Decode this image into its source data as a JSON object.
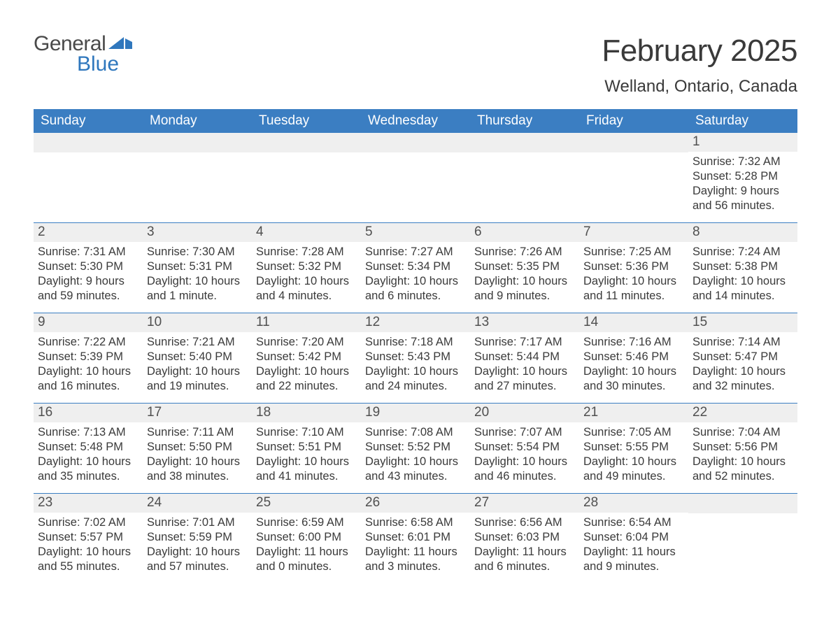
{
  "brand": {
    "word1": "General",
    "word2": "Blue",
    "accent_color": "#2f77bd"
  },
  "header": {
    "title": "February 2025",
    "location": "Welland, Ontario, Canada"
  },
  "colors": {
    "header_bg": "#3b7ec2",
    "header_text": "#ffffff",
    "daynum_bg": "#efefef",
    "week_border": "#3b7ec2",
    "body_text": "#3a3a3a"
  },
  "typography": {
    "title_fontsize": 44,
    "location_fontsize": 24,
    "dayhead_fontsize": 19,
    "daynum_fontsize": 19,
    "body_fontsize": 16.5
  },
  "day_headers": [
    "Sunday",
    "Monday",
    "Tuesday",
    "Wednesday",
    "Thursday",
    "Friday",
    "Saturday"
  ],
  "labels": {
    "sunrise": "Sunrise:",
    "sunset": "Sunset:",
    "daylight": "Daylight:"
  },
  "weeks": [
    [
      {
        "empty": true
      },
      {
        "empty": true
      },
      {
        "empty": true
      },
      {
        "empty": true
      },
      {
        "empty": true
      },
      {
        "empty": true
      },
      {
        "num": "1",
        "sunrise": "7:32 AM",
        "sunset": "5:28 PM",
        "daylight": "9 hours and 56 minutes."
      }
    ],
    [
      {
        "num": "2",
        "sunrise": "7:31 AM",
        "sunset": "5:30 PM",
        "daylight": "9 hours and 59 minutes."
      },
      {
        "num": "3",
        "sunrise": "7:30 AM",
        "sunset": "5:31 PM",
        "daylight": "10 hours and 1 minute."
      },
      {
        "num": "4",
        "sunrise": "7:28 AM",
        "sunset": "5:32 PM",
        "daylight": "10 hours and 4 minutes."
      },
      {
        "num": "5",
        "sunrise": "7:27 AM",
        "sunset": "5:34 PM",
        "daylight": "10 hours and 6 minutes."
      },
      {
        "num": "6",
        "sunrise": "7:26 AM",
        "sunset": "5:35 PM",
        "daylight": "10 hours and 9 minutes."
      },
      {
        "num": "7",
        "sunrise": "7:25 AM",
        "sunset": "5:36 PM",
        "daylight": "10 hours and 11 minutes."
      },
      {
        "num": "8",
        "sunrise": "7:24 AM",
        "sunset": "5:38 PM",
        "daylight": "10 hours and 14 minutes."
      }
    ],
    [
      {
        "num": "9",
        "sunrise": "7:22 AM",
        "sunset": "5:39 PM",
        "daylight": "10 hours and 16 minutes."
      },
      {
        "num": "10",
        "sunrise": "7:21 AM",
        "sunset": "5:40 PM",
        "daylight": "10 hours and 19 minutes."
      },
      {
        "num": "11",
        "sunrise": "7:20 AM",
        "sunset": "5:42 PM",
        "daylight": "10 hours and 22 minutes."
      },
      {
        "num": "12",
        "sunrise": "7:18 AM",
        "sunset": "5:43 PM",
        "daylight": "10 hours and 24 minutes."
      },
      {
        "num": "13",
        "sunrise": "7:17 AM",
        "sunset": "5:44 PM",
        "daylight": "10 hours and 27 minutes."
      },
      {
        "num": "14",
        "sunrise": "7:16 AM",
        "sunset": "5:46 PM",
        "daylight": "10 hours and 30 minutes."
      },
      {
        "num": "15",
        "sunrise": "7:14 AM",
        "sunset": "5:47 PM",
        "daylight": "10 hours and 32 minutes."
      }
    ],
    [
      {
        "num": "16",
        "sunrise": "7:13 AM",
        "sunset": "5:48 PM",
        "daylight": "10 hours and 35 minutes."
      },
      {
        "num": "17",
        "sunrise": "7:11 AM",
        "sunset": "5:50 PM",
        "daylight": "10 hours and 38 minutes."
      },
      {
        "num": "18",
        "sunrise": "7:10 AM",
        "sunset": "5:51 PM",
        "daylight": "10 hours and 41 minutes."
      },
      {
        "num": "19",
        "sunrise": "7:08 AM",
        "sunset": "5:52 PM",
        "daylight": "10 hours and 43 minutes."
      },
      {
        "num": "20",
        "sunrise": "7:07 AM",
        "sunset": "5:54 PM",
        "daylight": "10 hours and 46 minutes."
      },
      {
        "num": "21",
        "sunrise": "7:05 AM",
        "sunset": "5:55 PM",
        "daylight": "10 hours and 49 minutes."
      },
      {
        "num": "22",
        "sunrise": "7:04 AM",
        "sunset": "5:56 PM",
        "daylight": "10 hours and 52 minutes."
      }
    ],
    [
      {
        "num": "23",
        "sunrise": "7:02 AM",
        "sunset": "5:57 PM",
        "daylight": "10 hours and 55 minutes."
      },
      {
        "num": "24",
        "sunrise": "7:01 AM",
        "sunset": "5:59 PM",
        "daylight": "10 hours and 57 minutes."
      },
      {
        "num": "25",
        "sunrise": "6:59 AM",
        "sunset": "6:00 PM",
        "daylight": "11 hours and 0 minutes."
      },
      {
        "num": "26",
        "sunrise": "6:58 AM",
        "sunset": "6:01 PM",
        "daylight": "11 hours and 3 minutes."
      },
      {
        "num": "27",
        "sunrise": "6:56 AM",
        "sunset": "6:03 PM",
        "daylight": "11 hours and 6 minutes."
      },
      {
        "num": "28",
        "sunrise": "6:54 AM",
        "sunset": "6:04 PM",
        "daylight": "11 hours and 9 minutes."
      },
      {
        "empty": true
      }
    ]
  ]
}
